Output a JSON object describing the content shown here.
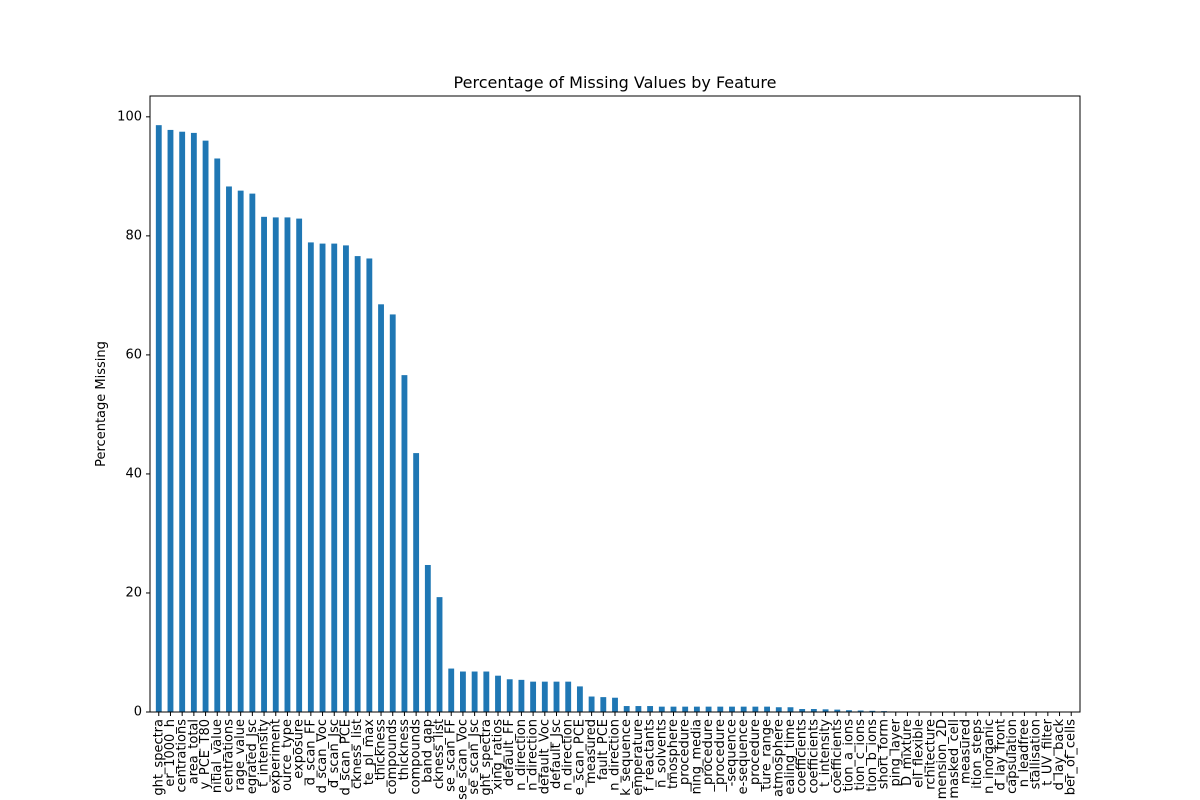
{
  "chart_data": {
    "type": "bar",
    "title": "Percentage of Missing Values by Feature",
    "xlabel": "",
    "ylabel": "Percentage Missing",
    "ylim": [
      0,
      103.5
    ],
    "yticks": [
      0,
      20,
      40,
      60,
      80,
      100
    ],
    "grid": false,
    "legend": "none",
    "bar_color": "#1f77b4",
    "categories": [
      "ght_spectra",
      "er_1000_h",
      "centrations",
      "area_total",
      "y_PCE_T80",
      "nitial_value",
      "centrations",
      "rage_value",
      "egrated_Jsc",
      "t_intensity",
      "experiment",
      "ource_type",
      "_exposure",
      "d_scan_FF",
      "d_scan_Voc",
      "d_scan_Jsc",
      "d_scan_PCE",
      "ckness_list",
      "te_pl_max",
      "_thickness",
      "compounds",
      "thickness",
      "compounds",
      "band_gap",
      "ckness_list",
      "se_scan_FF",
      "se_scan_Voc",
      "se_scan_Jsc",
      "ght_spectra",
      "xing_ratios",
      "default_FF",
      "n_direction",
      "n_direction",
      "default_Voc",
      "default_Jsc",
      "n_direction",
      "e_scan_PCE",
      "measured",
      "fault_PCE",
      "n_direction",
      "k_sequence",
      "emperature",
      "f_reactants",
      "n_solvents",
      "tmosphere",
      "_procedure",
      "ning_media",
      "_procedure",
      "_procedure",
      "-sequence",
      "e-sequence",
      "_procedure",
      "ture_range",
      "atmosphere",
      "ealing_time",
      "coefficients",
      "coefficients",
      "t_intensity",
      "coefficients",
      "tion_a_ions",
      "tion_c_ions",
      "tion_b_ions",
      "short_form",
      "ping_layer",
      "D_mixture",
      "ell_flexible",
      "rchitecture",
      "mension_2D",
      "masked_cell",
      "measured",
      "ition_steps",
      "n_inorganic",
      "d_lay_front",
      "capsulation",
      "n_leadfree",
      "stallisation",
      "t_UV_filter",
      "d_lay_back",
      "ber_of_cells"
    ],
    "values": [
      98.6,
      97.8,
      97.5,
      97.3,
      96.0,
      93.0,
      88.3,
      87.6,
      87.1,
      83.2,
      83.1,
      83.1,
      82.9,
      78.9,
      78.7,
      78.7,
      78.4,
      76.6,
      76.2,
      68.5,
      66.8,
      56.6,
      43.5,
      24.7,
      19.3,
      7.3,
      6.8,
      6.8,
      6.8,
      6.1,
      5.5,
      5.4,
      5.1,
      5.1,
      5.1,
      5.1,
      4.3,
      2.6,
      2.5,
      2.4,
      1.0,
      1.0,
      1.0,
      0.9,
      0.9,
      0.9,
      0.9,
      0.9,
      0.9,
      0.9,
      0.9,
      0.9,
      0.9,
      0.8,
      0.8,
      0.5,
      0.5,
      0.45,
      0.4,
      0.3,
      0.25,
      0.2,
      0.15,
      0.0,
      0.0,
      0.0,
      0.0,
      0.0,
      0.0,
      0.0,
      0.0,
      0.0,
      0.0,
      0.0,
      0.0,
      0.0,
      0.0,
      0.0,
      0.0
    ]
  }
}
